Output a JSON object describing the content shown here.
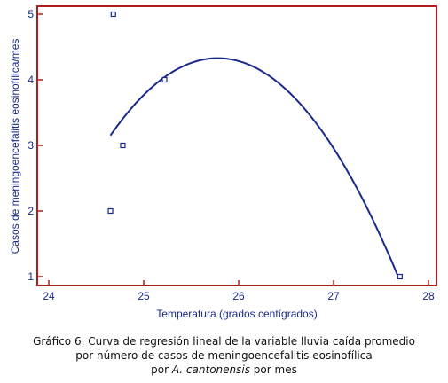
{
  "chart_data": {
    "type": "scatter",
    "xlabel": "Temperatura (grados centígrados)",
    "ylabel": "Casos de meningoencefalitis eosinofílica/mes",
    "xlim": [
      24,
      28
    ],
    "ylim": [
      1,
      5
    ],
    "xticks": [
      24,
      25,
      26,
      27,
      28
    ],
    "yticks": [
      1,
      2,
      3,
      4,
      5
    ],
    "grid": false,
    "series": [
      {
        "kind": "points",
        "marker": "open-square",
        "x": [
          24.68,
          24.78,
          25.22,
          24.65,
          27.7
        ],
        "y": [
          5,
          3,
          4,
          2,
          1
        ]
      },
      {
        "kind": "curve",
        "x_start": 24.65,
        "x_end": 27.68,
        "vertex_x": 25.78,
        "vertex_y": 4.33,
        "end_y": 1.0
      }
    ],
    "colors": {
      "frame": "#b01e1e",
      "series": "#1a2a8a",
      "text": "#1a2a8a"
    }
  },
  "caption": {
    "line1": "Gráfico 6. Curva de regresión lineal de la variable lluvia caída promedio",
    "line2": "por número de casos de meningoencefalitis eosinofílica",
    "line3_prefix": "por ",
    "line3_species": "A. cantonensis",
    "line3_suffix": " por mes"
  }
}
